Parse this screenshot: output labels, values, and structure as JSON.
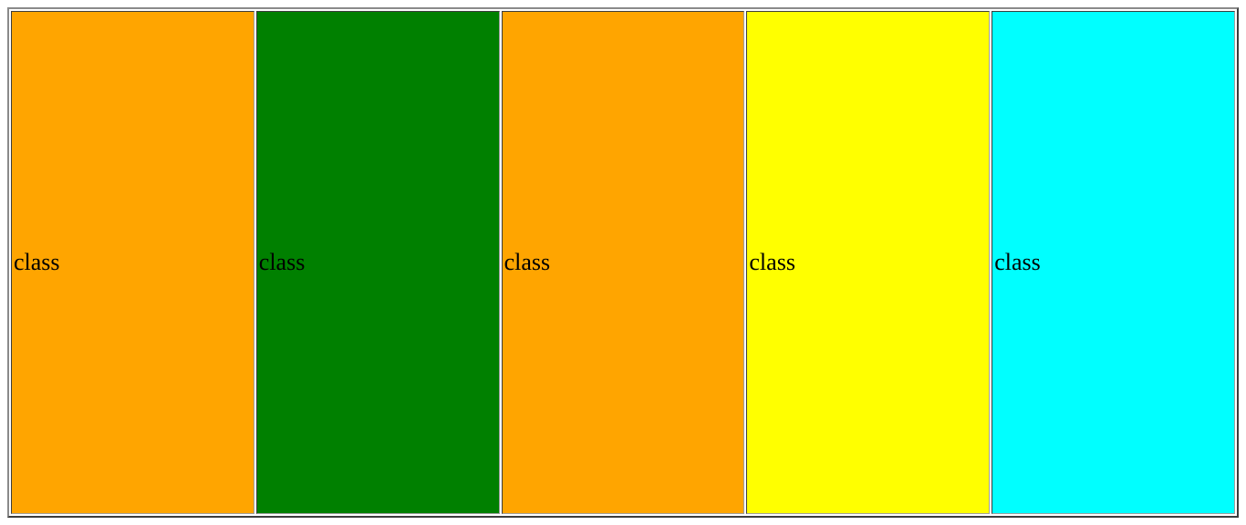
{
  "table": {
    "cells": [
      {
        "label": "class",
        "color": "#FFA500"
      },
      {
        "label": "class",
        "color": "#008000"
      },
      {
        "label": "class",
        "color": "#FFA500"
      },
      {
        "label": "class",
        "color": "#FFFF00"
      },
      {
        "label": "class",
        "color": "#00FFFF"
      }
    ]
  }
}
